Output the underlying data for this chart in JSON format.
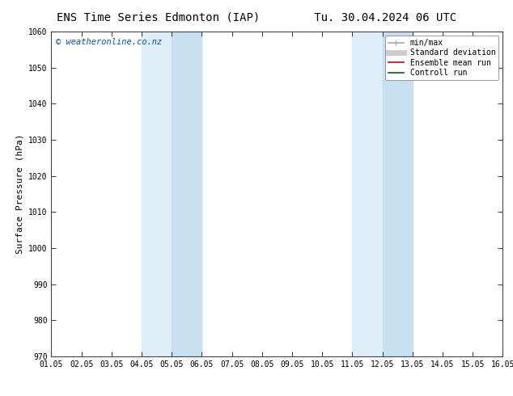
{
  "title_left": "ENS Time Series Edmonton (IAP)",
  "title_right": "Tu. 30.04.2024 06 UTC",
  "ylabel": "Surface Pressure (hPa)",
  "ylim": [
    970,
    1060
  ],
  "yticks": [
    970,
    980,
    990,
    1000,
    1010,
    1020,
    1030,
    1040,
    1050,
    1060
  ],
  "xtick_labels": [
    "01.05",
    "02.05",
    "03.05",
    "04.05",
    "05.05",
    "06.05",
    "07.05",
    "08.05",
    "09.05",
    "10.05",
    "11.05",
    "12.05",
    "13.05",
    "14.05",
    "15.05",
    "16.05"
  ],
  "xtick_positions": [
    0,
    1,
    2,
    3,
    4,
    5,
    6,
    7,
    8,
    9,
    10,
    11,
    12,
    13,
    14,
    15
  ],
  "shaded_regions": [
    {
      "xstart": 3.0,
      "xend": 4.0,
      "color": "#ddeef8"
    },
    {
      "xstart": 4.0,
      "xend": 5.0,
      "color": "#c8dff0"
    },
    {
      "xstart": 10.0,
      "xend": 11.0,
      "color": "#ddeef8"
    },
    {
      "xstart": 11.0,
      "xend": 12.0,
      "color": "#c8dff0"
    }
  ],
  "watermark": "© weatheronline.co.nz",
  "watermark_color": "#0055cc",
  "legend_items": [
    {
      "label": "min/max",
      "color": "#aaaaaa",
      "lw": 1.2,
      "style": "line_with_caps"
    },
    {
      "label": "Standard deviation",
      "color": "#cccccc",
      "lw": 5,
      "style": "thick_line"
    },
    {
      "label": "Ensemble mean run",
      "color": "#cc0000",
      "lw": 1.2,
      "style": "solid"
    },
    {
      "label": "Controll run",
      "color": "#006600",
      "lw": 1.2,
      "style": "solid"
    }
  ],
  "background_color": "#ffffff",
  "plot_bg_color": "#ffffff",
  "title_fontsize": 10,
  "tick_label_fontsize": 7,
  "ylabel_fontsize": 8,
  "watermark_fontsize": 7.5,
  "legend_fontsize": 7
}
